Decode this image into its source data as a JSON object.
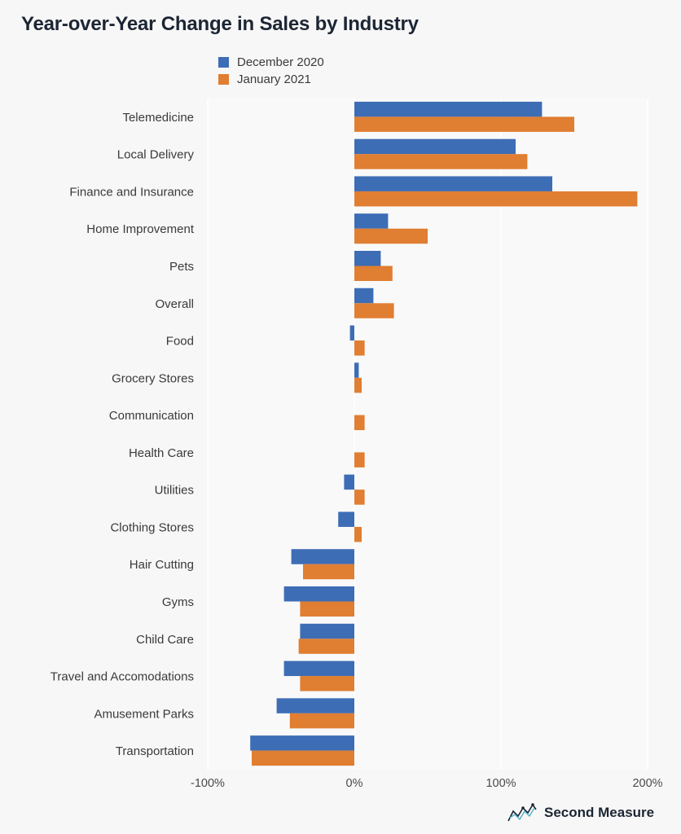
{
  "title": "Year-over-Year Change in Sales by Industry",
  "legend": [
    {
      "label": "December 2020",
      "color": "#3d6db5"
    },
    {
      "label": "January 2021",
      "color": "#e07e32"
    }
  ],
  "brand": {
    "name": "Second Measure",
    "icon": "line-chart-logo-icon"
  },
  "chart_data": {
    "type": "bar",
    "orientation": "horizontal",
    "categories": [
      "Telemedicine",
      "Local Delivery",
      "Finance and Insurance",
      "Home Improvement",
      "Pets",
      "Overall",
      "Food",
      "Grocery Stores",
      "Communication",
      "Health Care",
      "Utilities",
      "Clothing Stores",
      "Hair Cutting",
      "Gyms",
      "Child Care",
      "Travel and Accomodations",
      "Amusement Parks",
      "Transportation"
    ],
    "series": [
      {
        "name": "December 2020",
        "values": [
          128,
          110,
          135,
          23,
          18,
          13,
          -3,
          3,
          0,
          0,
          -7,
          -11,
          -43,
          -48,
          -37,
          -48,
          -53,
          -71
        ]
      },
      {
        "name": "January 2021",
        "values": [
          150,
          118,
          193,
          50,
          26,
          27,
          7,
          5,
          7,
          7,
          7,
          5,
          -35,
          -37,
          -38,
          -37,
          -44,
          -70
        ]
      }
    ],
    "xticks": [
      "-100%",
      "0%",
      "100%",
      "200%"
    ],
    "xtick_values": [
      -100,
      0,
      100,
      200
    ],
    "xlim": [
      -100,
      200
    ],
    "grid": true,
    "legend_position": "top-left"
  }
}
